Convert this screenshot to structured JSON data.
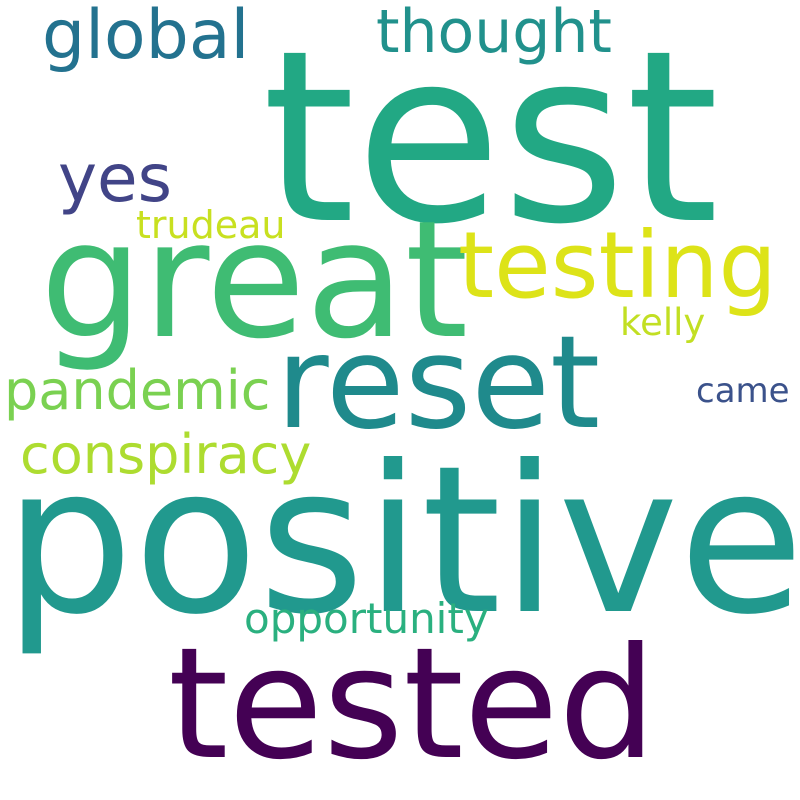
{
  "words": [
    {
      "id": "test",
      "text": "test",
      "color": "#22a884"
    },
    {
      "id": "positive",
      "text": "positive",
      "color": "#21998e"
    },
    {
      "id": "great",
      "text": "great",
      "color": "#3fbc73"
    },
    {
      "id": "tested",
      "text": "tested",
      "color": "#440154"
    },
    {
      "id": "reset",
      "text": "reset",
      "color": "#1f8a8c"
    },
    {
      "id": "testing",
      "text": "testing",
      "color": "#dde318"
    },
    {
      "id": "global",
      "text": "global",
      "color": "#23728f"
    },
    {
      "id": "yes",
      "text": "yes",
      "color": "#414487"
    },
    {
      "id": "thought",
      "text": "thought",
      "color": "#21918c"
    },
    {
      "id": "pandemic",
      "text": "pandemic",
      "color": "#7ad151"
    },
    {
      "id": "conspiracy",
      "text": "conspiracy",
      "color": "#addc30"
    },
    {
      "id": "opportunity",
      "text": "opportunity",
      "color": "#2ab07f"
    },
    {
      "id": "trudeau",
      "text": "trudeau",
      "color": "#c8e020"
    },
    {
      "id": "kelly",
      "text": "kelly",
      "color": "#c2df23"
    },
    {
      "id": "came",
      "text": "came",
      "color": "#3b528b"
    }
  ]
}
